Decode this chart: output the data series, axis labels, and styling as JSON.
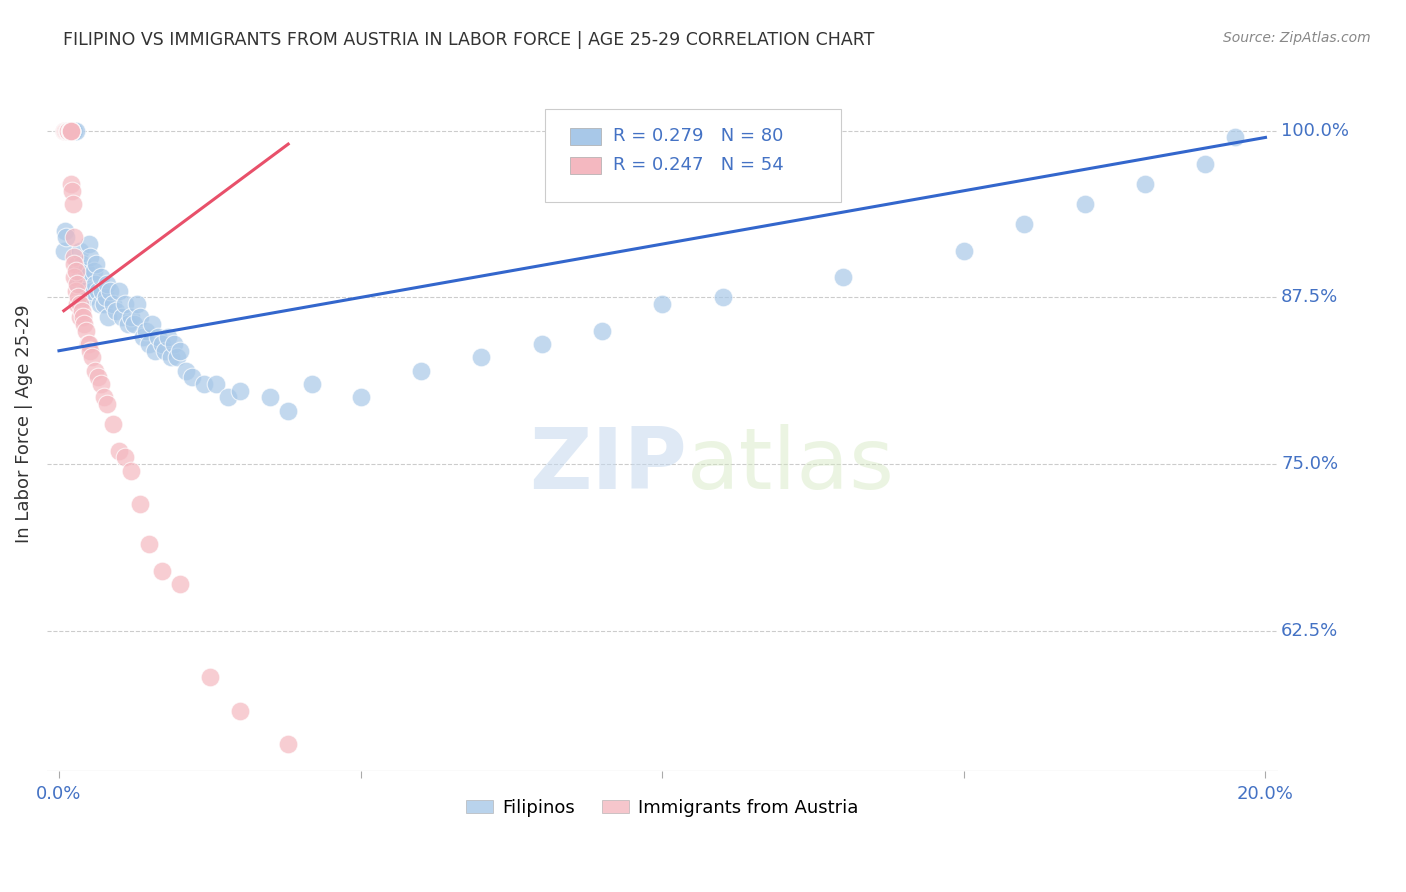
{
  "title": "FILIPINO VS IMMIGRANTS FROM AUSTRIA IN LABOR FORCE | AGE 25-29 CORRELATION CHART",
  "source": "Source: ZipAtlas.com",
  "ylabel": "In Labor Force | Age 25-29",
  "yticks": [
    1.0,
    0.875,
    0.75,
    0.625
  ],
  "ytick_labels": [
    "100.0%",
    "87.5%",
    "75.0%",
    "62.5%"
  ],
  "xlim": [
    0.0,
    0.2
  ],
  "ylim": [
    0.52,
    1.04
  ],
  "filipino_R": 0.279,
  "filipino_N": 80,
  "austria_R": 0.247,
  "austria_N": 54,
  "filipino_color": "#a8c8e8",
  "austria_color": "#f4b8c0",
  "filipino_line_color": "#3366cc",
  "austria_line_color": "#e8506a",
  "legend_label_1": "Filipinos",
  "legend_label_2": "Immigrants from Austria",
  "watermark_zip": "ZIP",
  "watermark_atlas": "atlas",
  "background_color": "#ffffff",
  "grid_color": "#cccccc",
  "title_color": "#333333",
  "right_label_color": "#4472c4",
  "filipino_x": [
    0.0008,
    0.001,
    0.0012,
    0.0015,
    0.0015,
    0.0018,
    0.002,
    0.0022,
    0.0025,
    0.0028,
    0.003,
    0.0032,
    0.0035,
    0.0035,
    0.0038,
    0.004,
    0.0042,
    0.0045,
    0.0048,
    0.005,
    0.0052,
    0.0055,
    0.0058,
    0.006,
    0.0062,
    0.0065,
    0.0068,
    0.007,
    0.0072,
    0.0075,
    0.0078,
    0.008,
    0.0082,
    0.0085,
    0.009,
    0.0095,
    0.01,
    0.0105,
    0.011,
    0.0115,
    0.012,
    0.0125,
    0.013,
    0.0135,
    0.014,
    0.0145,
    0.015,
    0.0155,
    0.016,
    0.0165,
    0.017,
    0.0175,
    0.018,
    0.0185,
    0.019,
    0.0195,
    0.02,
    0.021,
    0.022,
    0.024,
    0.026,
    0.028,
    0.03,
    0.035,
    0.038,
    0.042,
    0.05,
    0.06,
    0.07,
    0.08,
    0.09,
    0.1,
    0.11,
    0.13,
    0.15,
    0.16,
    0.17,
    0.18,
    0.19,
    0.195
  ],
  "filipino_y": [
    0.91,
    0.925,
    0.92,
    1.0,
    1.0,
    1.0,
    1.0,
    1.0,
    1.0,
    1.0,
    0.9,
    0.885,
    0.91,
    0.89,
    0.9,
    0.89,
    0.88,
    0.895,
    0.875,
    0.915,
    0.905,
    0.88,
    0.895,
    0.885,
    0.9,
    0.88,
    0.87,
    0.89,
    0.88,
    0.87,
    0.875,
    0.885,
    0.86,
    0.88,
    0.87,
    0.865,
    0.88,
    0.86,
    0.87,
    0.855,
    0.86,
    0.855,
    0.87,
    0.86,
    0.845,
    0.85,
    0.84,
    0.855,
    0.835,
    0.845,
    0.84,
    0.835,
    0.845,
    0.83,
    0.84,
    0.83,
    0.835,
    0.82,
    0.815,
    0.81,
    0.81,
    0.8,
    0.805,
    0.8,
    0.79,
    0.81,
    0.8,
    0.82,
    0.83,
    0.84,
    0.85,
    0.87,
    0.875,
    0.89,
    0.91,
    0.93,
    0.945,
    0.96,
    0.975,
    0.995
  ],
  "austria_x": [
    0.0008,
    0.001,
    0.001,
    0.0012,
    0.0013,
    0.0015,
    0.0015,
    0.0015,
    0.0015,
    0.0018,
    0.0018,
    0.002,
    0.002,
    0.002,
    0.002,
    0.002,
    0.002,
    0.0022,
    0.0023,
    0.0025,
    0.0025,
    0.0025,
    0.0025,
    0.0028,
    0.0028,
    0.003,
    0.003,
    0.0032,
    0.0035,
    0.0035,
    0.0038,
    0.004,
    0.0042,
    0.0045,
    0.0048,
    0.005,
    0.0052,
    0.0055,
    0.006,
    0.0065,
    0.007,
    0.0075,
    0.008,
    0.009,
    0.01,
    0.011,
    0.012,
    0.0135,
    0.015,
    0.017,
    0.02,
    0.025,
    0.03,
    0.038
  ],
  "austria_y": [
    1.0,
    1.0,
    1.0,
    1.0,
    1.0,
    1.0,
    1.0,
    1.0,
    1.0,
    1.0,
    1.0,
    1.0,
    1.0,
    1.0,
    1.0,
    1.0,
    0.96,
    0.955,
    0.945,
    0.92,
    0.905,
    0.9,
    0.89,
    0.895,
    0.88,
    0.885,
    0.87,
    0.875,
    0.87,
    0.86,
    0.865,
    0.86,
    0.855,
    0.85,
    0.84,
    0.84,
    0.835,
    0.83,
    0.82,
    0.815,
    0.81,
    0.8,
    0.795,
    0.78,
    0.76,
    0.755,
    0.745,
    0.72,
    0.69,
    0.67,
    0.66,
    0.59,
    0.565,
    0.54
  ],
  "fil_trend_x0": 0.0,
  "fil_trend_x1": 0.2,
  "fil_trend_y0": 0.835,
  "fil_trend_y1": 0.995,
  "aut_trend_x0": 0.0008,
  "aut_trend_x1": 0.038,
  "aut_trend_y0": 0.865,
  "aut_trend_y1": 0.99
}
